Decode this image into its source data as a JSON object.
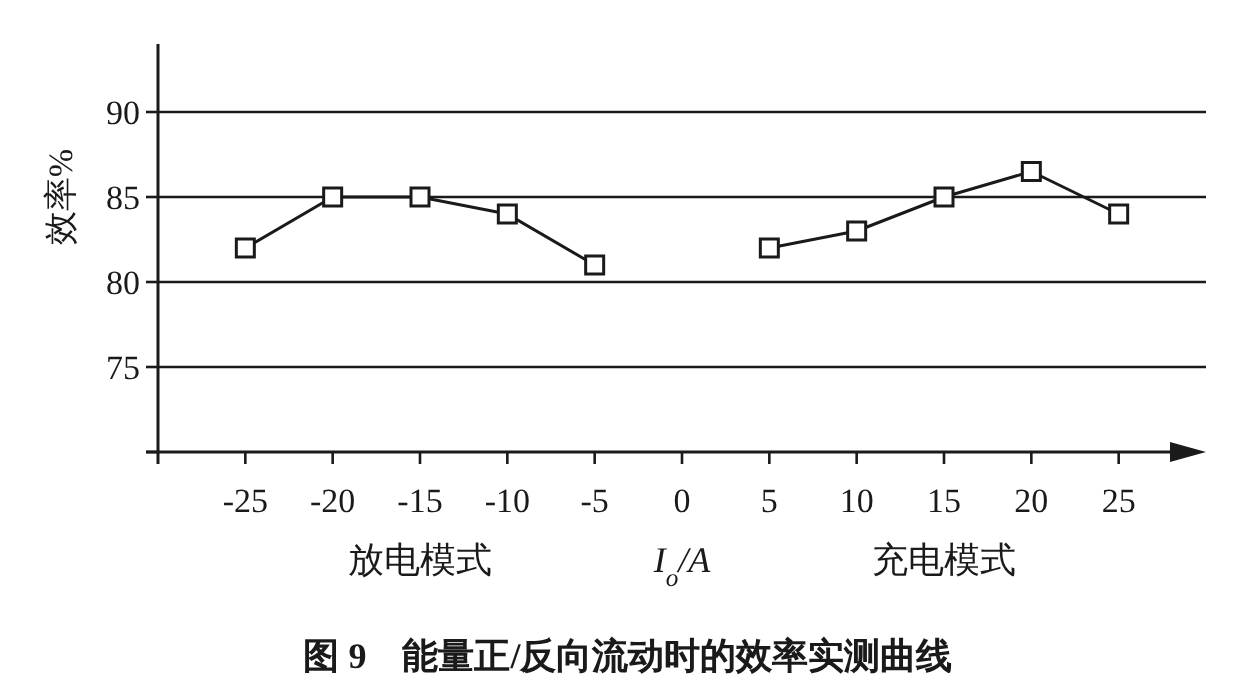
{
  "chart_data": {
    "type": "line",
    "title": "图 9　能量正/反向流动时的效率实测曲线",
    "xlabel": "I$_{o}$/A",
    "ylabel": "效率%",
    "annotations": [
      "放电模式",
      "充电模式"
    ],
    "series": [
      {
        "color": "#1a1a1a",
        "x": [
          -25,
          -20,
          -15,
          -10,
          -5
        ],
        "values": [
          82,
          85,
          85,
          84,
          81
        ]
      },
      {
        "color": "#1a1a1a",
        "x": [
          5,
          10,
          15,
          20,
          25
        ],
        "values": [
          82,
          83,
          85,
          86.5,
          84
        ]
      }
    ],
    "xlim": [
      -30,
      30
    ],
    "ylim": [
      70,
      94
    ],
    "xticks": [
      -25,
      -20,
      -15,
      -10,
      -5,
      0,
      5,
      10,
      15,
      20,
      25
    ],
    "yticks": [
      {
        "value": 70,
        "label": null
      },
      75,
      80,
      85,
      90
    ],
    "grid": "y",
    "marker": "square",
    "line_style": "solid"
  }
}
